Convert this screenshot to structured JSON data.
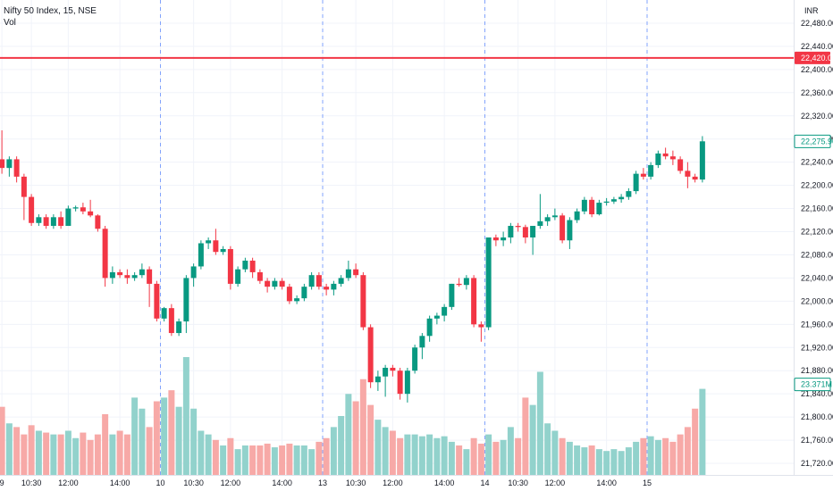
{
  "legend": {
    "symbol_line": "Nifty 50 Index, 15, NSE",
    "volume_line": "Vol"
  },
  "chart_data": {
    "type": "candlestick",
    "currency": "INR",
    "ylim": [
      21700,
      22520
    ],
    "y_ticks": [
      "22,480.00",
      "22,440.00",
      "22,400.00",
      "22,360.00",
      "22,320.00",
      "22,280.00",
      "22,240.00",
      "22,200.00",
      "22,160.00",
      "22,120.00",
      "22,080.00",
      "22,040.00",
      "22,000.00",
      "21,960.00",
      "21,920.00",
      "21,880.00",
      "21,840.00",
      "21,800.00",
      "21,760.00",
      "21,720.00"
    ],
    "x_ticks": [
      {
        "index": 0,
        "label": "9"
      },
      {
        "index": 4,
        "label": "10:30"
      },
      {
        "index": 9,
        "label": "12:00"
      },
      {
        "index": 16,
        "label": "14:00"
      },
      {
        "index": 21.5,
        "label": "10"
      },
      {
        "index": 26,
        "label": "10:30"
      },
      {
        "index": 31,
        "label": "12:00"
      },
      {
        "index": 38,
        "label": "14:00"
      },
      {
        "index": 43.5,
        "label": "13"
      },
      {
        "index": 48,
        "label": "10:30"
      },
      {
        "index": 53,
        "label": "12:00"
      },
      {
        "index": 60,
        "label": "14:00"
      },
      {
        "index": 65.5,
        "label": "14"
      },
      {
        "index": 70,
        "label": "10:30"
      },
      {
        "index": 75,
        "label": "12:00"
      },
      {
        "index": 82,
        "label": "14:00"
      },
      {
        "index": 87.5,
        "label": "15"
      }
    ],
    "session_breaks": [
      21.5,
      43.5,
      65.5,
      87.5
    ],
    "horizontal_line": {
      "value": 22420.0,
      "label": "22,420.00",
      "color": "#f23645"
    },
    "last_price": {
      "value": 22275.9,
      "label": "22,275.90",
      "color": "#089981"
    },
    "last_volume": {
      "label": "23.371M",
      "color": "#089981"
    },
    "colors": {
      "up": "#089981",
      "down": "#f23645",
      "vol_up": "#92d2cc",
      "vol_down": "#f7a9a7",
      "grid": "#f0f3fa",
      "session": "#2962ff"
    },
    "candles": [
      {
        "o": 22245,
        "h": 22295,
        "l": 22220,
        "c": 22230,
        "v": 18.5
      },
      {
        "o": 22230,
        "h": 22250,
        "l": 22215,
        "c": 22245,
        "v": 14.0
      },
      {
        "o": 22245,
        "h": 22250,
        "l": 22205,
        "c": 22215,
        "v": 13.0
      },
      {
        "o": 22215,
        "h": 22220,
        "l": 22140,
        "c": 22180,
        "v": 11.0
      },
      {
        "o": 22180,
        "h": 22185,
        "l": 22130,
        "c": 22135,
        "v": 13.5
      },
      {
        "o": 22135,
        "h": 22150,
        "l": 22130,
        "c": 22145,
        "v": 12.0
      },
      {
        "o": 22145,
        "h": 22150,
        "l": 22125,
        "c": 22130,
        "v": 11.5
      },
      {
        "o": 22130,
        "h": 22150,
        "l": 22125,
        "c": 22145,
        "v": 11.0
      },
      {
        "o": 22145,
        "h": 22155,
        "l": 22125,
        "c": 22130,
        "v": 11.0
      },
      {
        "o": 22130,
        "h": 22165,
        "l": 22130,
        "c": 22160,
        "v": 12.0
      },
      {
        "o": 22160,
        "h": 22165,
        "l": 22155,
        "c": 22162,
        "v": 10.0
      },
      {
        "o": 22162,
        "h": 22170,
        "l": 22150,
        "c": 22155,
        "v": 11.5
      },
      {
        "o": 22155,
        "h": 22175,
        "l": 22145,
        "c": 22148,
        "v": 9.5
      },
      {
        "o": 22148,
        "h": 22150,
        "l": 22120,
        "c": 22125,
        "v": 11.0
      },
      {
        "o": 22125,
        "h": 22130,
        "l": 22025,
        "c": 22040,
        "v": 16.5
      },
      {
        "o": 22040,
        "h": 22060,
        "l": 22030,
        "c": 22050,
        "v": 11.0
      },
      {
        "o": 22050,
        "h": 22055,
        "l": 22040,
        "c": 22045,
        "v": 12.0
      },
      {
        "o": 22045,
        "h": 22055,
        "l": 22030,
        "c": 22040,
        "v": 11.0
      },
      {
        "o": 22040,
        "h": 22050,
        "l": 22035,
        "c": 22045,
        "v": 21.0
      },
      {
        "o": 22045,
        "h": 22065,
        "l": 22040,
        "c": 22055,
        "v": 18.0
      },
      {
        "o": 22055,
        "h": 22060,
        "l": 21990,
        "c": 22030,
        "v": 13.0
      },
      {
        "o": 22030,
        "h": 22035,
        "l": 21965,
        "c": 21970,
        "v": 20.0
      },
      {
        "o": 21970,
        "h": 21990,
        "l": 21965,
        "c": 21988,
        "v": 21.0
      },
      {
        "o": 21988,
        "h": 21995,
        "l": 21940,
        "c": 21945,
        "v": 23.0
      },
      {
        "o": 21945,
        "h": 21970,
        "l": 21940,
        "c": 21965,
        "v": 18.5
      },
      {
        "o": 21965,
        "h": 22045,
        "l": 21945,
        "c": 22040,
        "v": 32.0
      },
      {
        "o": 22040,
        "h": 22065,
        "l": 22025,
        "c": 22060,
        "v": 18.0
      },
      {
        "o": 22060,
        "h": 22105,
        "l": 22055,
        "c": 22100,
        "v": 12.0
      },
      {
        "o": 22100,
        "h": 22110,
        "l": 22090,
        "c": 22105,
        "v": 11.0
      },
      {
        "o": 22105,
        "h": 22125,
        "l": 22080,
        "c": 22085,
        "v": 9.5
      },
      {
        "o": 22085,
        "h": 22095,
        "l": 22080,
        "c": 22090,
        "v": 8.0
      },
      {
        "o": 22090,
        "h": 22095,
        "l": 22020,
        "c": 22030,
        "v": 10.0
      },
      {
        "o": 22030,
        "h": 22060,
        "l": 22025,
        "c": 22055,
        "v": 7.0
      },
      {
        "o": 22055,
        "h": 22075,
        "l": 22050,
        "c": 22070,
        "v": 8.0
      },
      {
        "o": 22070,
        "h": 22075,
        "l": 22040,
        "c": 22050,
        "v": 8.0
      },
      {
        "o": 22050,
        "h": 22055,
        "l": 22030,
        "c": 22035,
        "v": 8.0
      },
      {
        "o": 22035,
        "h": 22040,
        "l": 22015,
        "c": 22025,
        "v": 8.5
      },
      {
        "o": 22025,
        "h": 22040,
        "l": 22020,
        "c": 22035,
        "v": 7.5
      },
      {
        "o": 22035,
        "h": 22040,
        "l": 22020,
        "c": 22025,
        "v": 8.0
      },
      {
        "o": 22025,
        "h": 22030,
        "l": 21995,
        "c": 22000,
        "v": 8.5
      },
      {
        "o": 22000,
        "h": 22010,
        "l": 21995,
        "c": 22005,
        "v": 8.0
      },
      {
        "o": 22005,
        "h": 22030,
        "l": 22000,
        "c": 22025,
        "v": 8.0
      },
      {
        "o": 22025,
        "h": 22050,
        "l": 22020,
        "c": 22045,
        "v": 7.0
      },
      {
        "o": 22045,
        "h": 22050,
        "l": 22020,
        "c": 22025,
        "v": 9.0
      },
      {
        "o": 22025,
        "h": 22030,
        "l": 22010,
        "c": 22020,
        "v": 10.0
      },
      {
        "o": 22020,
        "h": 22035,
        "l": 22010,
        "c": 22030,
        "v": 13.0
      },
      {
        "o": 22030,
        "h": 22045,
        "l": 22025,
        "c": 22040,
        "v": 16.0
      },
      {
        "o": 22040,
        "h": 22070,
        "l": 22035,
        "c": 22055,
        "v": 22.0
      },
      {
        "o": 22055,
        "h": 22065,
        "l": 22040,
        "c": 22045,
        "v": 20.0
      },
      {
        "o": 22045,
        "h": 22050,
        "l": 21950,
        "c": 21955,
        "v": 26.0
      },
      {
        "o": 21955,
        "h": 21960,
        "l": 21850,
        "c": 21860,
        "v": 19.0
      },
      {
        "o": 21860,
        "h": 21880,
        "l": 21845,
        "c": 21870,
        "v": 15.0
      },
      {
        "o": 21870,
        "h": 21890,
        "l": 21835,
        "c": 21885,
        "v": 13.0
      },
      {
        "o": 21885,
        "h": 21890,
        "l": 21870,
        "c": 21880,
        "v": 12.0
      },
      {
        "o": 21880,
        "h": 21885,
        "l": 21830,
        "c": 21840,
        "v": 10.0
      },
      {
        "o": 21840,
        "h": 21885,
        "l": 21825,
        "c": 21880,
        "v": 11.0
      },
      {
        "o": 21880,
        "h": 21925,
        "l": 21875,
        "c": 21920,
        "v": 11.0
      },
      {
        "o": 21920,
        "h": 21945,
        "l": 21900,
        "c": 21940,
        "v": 10.5
      },
      {
        "o": 21940,
        "h": 21975,
        "l": 21930,
        "c": 21970,
        "v": 11.0
      },
      {
        "o": 21970,
        "h": 21980,
        "l": 21960,
        "c": 21975,
        "v": 10.0
      },
      {
        "o": 21975,
        "h": 21995,
        "l": 21965,
        "c": 21990,
        "v": 10.5
      },
      {
        "o": 21990,
        "h": 22030,
        "l": 21985,
        "c": 22030,
        "v": 9.0
      },
      {
        "o": 22030,
        "h": 22040,
        "l": 22025,
        "c": 22028,
        "v": 8.0
      },
      {
        "o": 22028,
        "h": 22045,
        "l": 22020,
        "c": 22040,
        "v": 7.0
      },
      {
        "o": 22040,
        "h": 22045,
        "l": 21955,
        "c": 21960,
        "v": 10.0
      },
      {
        "o": 21960,
        "h": 21965,
        "l": 21930,
        "c": 21955,
        "v": 8.5
      },
      {
        "o": 21955,
        "h": 22110,
        "l": 21950,
        "c": 22110,
        "v": 11.0
      },
      {
        "o": 22110,
        "h": 22115,
        "l": 22095,
        "c": 22105,
        "v": 9.0
      },
      {
        "o": 22105,
        "h": 22120,
        "l": 22095,
        "c": 22110,
        "v": 9.5
      },
      {
        "o": 22110,
        "h": 22135,
        "l": 22100,
        "c": 22130,
        "v": 13.0
      },
      {
        "o": 22130,
        "h": 22135,
        "l": 22120,
        "c": 22128,
        "v": 10.0
      },
      {
        "o": 22128,
        "h": 22132,
        "l": 22100,
        "c": 22110,
        "v": 21.0
      },
      {
        "o": 22110,
        "h": 22130,
        "l": 22080,
        "c": 22130,
        "v": 19.0
      },
      {
        "o": 22130,
        "h": 22185,
        "l": 22125,
        "c": 22138,
        "v": 28.0
      },
      {
        "o": 22138,
        "h": 22150,
        "l": 22130,
        "c": 22145,
        "v": 14.0
      },
      {
        "o": 22145,
        "h": 22160,
        "l": 22140,
        "c": 22148,
        "v": 12.0
      },
      {
        "o": 22148,
        "h": 22152,
        "l": 22100,
        "c": 22105,
        "v": 10.0
      },
      {
        "o": 22105,
        "h": 22145,
        "l": 22090,
        "c": 22140,
        "v": 9.0
      },
      {
        "o": 22140,
        "h": 22160,
        "l": 22135,
        "c": 22155,
        "v": 8.0
      },
      {
        "o": 22155,
        "h": 22180,
        "l": 22150,
        "c": 22175,
        "v": 7.5
      },
      {
        "o": 22175,
        "h": 22180,
        "l": 22145,
        "c": 22150,
        "v": 8.0
      },
      {
        "o": 22150,
        "h": 22175,
        "l": 22148,
        "c": 22170,
        "v": 7.0
      },
      {
        "o": 22170,
        "h": 22178,
        "l": 22165,
        "c": 22172,
        "v": 6.5
      },
      {
        "o": 22172,
        "h": 22180,
        "l": 22168,
        "c": 22176,
        "v": 7.0
      },
      {
        "o": 22176,
        "h": 22185,
        "l": 22170,
        "c": 22180,
        "v": 6.5
      },
      {
        "o": 22180,
        "h": 22195,
        "l": 22175,
        "c": 22190,
        "v": 7.5
      },
      {
        "o": 22190,
        "h": 22225,
        "l": 22185,
        "c": 22220,
        "v": 9.0
      },
      {
        "o": 22220,
        "h": 22230,
        "l": 22210,
        "c": 22215,
        "v": 10.0
      },
      {
        "o": 22215,
        "h": 22240,
        "l": 22210,
        "c": 22235,
        "v": 10.5
      },
      {
        "o": 22235,
        "h": 22260,
        "l": 22230,
        "c": 22255,
        "v": 9.5
      },
      {
        "o": 22255,
        "h": 22265,
        "l": 22245,
        "c": 22250,
        "v": 10.0
      },
      {
        "o": 22250,
        "h": 22260,
        "l": 22235,
        "c": 22245,
        "v": 9.0
      },
      {
        "o": 22245,
        "h": 22250,
        "l": 22220,
        "c": 22225,
        "v": 11.0
      },
      {
        "o": 22225,
        "h": 22240,
        "l": 22195,
        "c": 22215,
        "v": 13.0
      },
      {
        "o": 22215,
        "h": 22220,
        "l": 22205,
        "c": 22210,
        "v": 18.0
      },
      {
        "o": 22210,
        "h": 22285,
        "l": 22205,
        "c": 22276,
        "v": 23.371
      }
    ]
  }
}
